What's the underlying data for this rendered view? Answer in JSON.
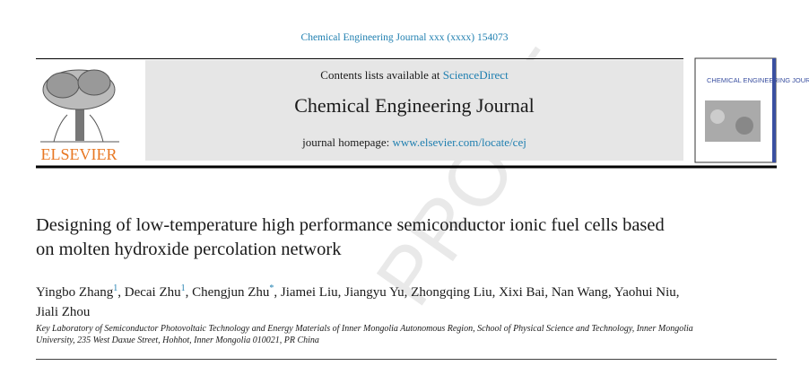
{
  "header": {
    "citation": "Chemical Engineering Journal xxx (xxxx) 154073",
    "contents_prefix": "Contents lists available at",
    "contents_link": "ScienceDirect",
    "journal": "Chemical Engineering Journal",
    "homepage_prefix": "journal homepage:",
    "homepage_link": "www.elsevier.com/locate/cej",
    "publisher": "ELSEVIER",
    "cover_title": "CHEMICAL ENGINEERING JOURNAL"
  },
  "article": {
    "title": "Designing of low-temperature high performance semiconductor ionic fuel cells based on molten hydroxide percolation network",
    "authors": [
      {
        "name": "Yingbo Zhang",
        "mark": "1"
      },
      {
        "name": "Decai Zhu",
        "mark": "1"
      },
      {
        "name": "Chengjun Zhu",
        "mark": "*"
      },
      {
        "name": "Jiamei Liu"
      },
      {
        "name": "Jiangyu Yu"
      },
      {
        "name": "Zhongqing Liu"
      },
      {
        "name": "Xixi Bai"
      },
      {
        "name": "Nan Wang"
      },
      {
        "name": "Yaohui Niu"
      },
      {
        "name": "Jiali Zhou"
      }
    ],
    "affiliation": "Key Laboratory of Semiconductor Photovoltaic Technology and Energy Materials of Inner Mongolia Autonomous Region, School of Physical Science and Technology, Inner Mongolia University, 235 West Daxue Street, Hohhot, Inner Mongolia 010021, PR China",
    "watermark": "PROOF"
  }
}
